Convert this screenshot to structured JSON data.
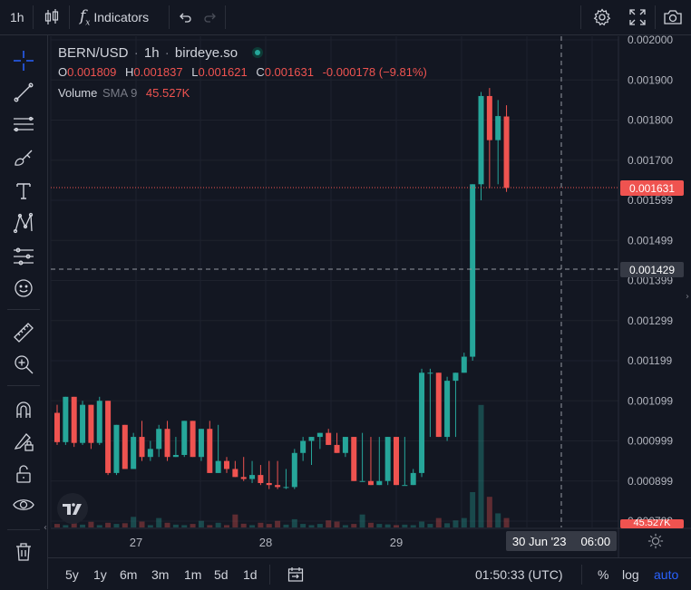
{
  "toolbar": {
    "interval": "1h",
    "indicators_label": "Indicators"
  },
  "legend": {
    "symbol": "BERN/USD",
    "interval": "1h",
    "source": "birdeye.so",
    "o_label": "O",
    "o_value": "0.001809",
    "h_label": "H",
    "h_value": "0.001837",
    "l_label": "L",
    "l_value": "0.001621",
    "c_label": "C",
    "c_value": "0.001631",
    "change": "-0.000178 (−9.81%)",
    "volume_label": "Volume",
    "sma_label": "SMA 9",
    "volume_value": "45.527K"
  },
  "price_labels": {
    "last": "0.001631",
    "crosshair": "0.001429",
    "volume": "45.527K"
  },
  "time_labels": {
    "crosshair": "30 Jun '23",
    "crosshair_time": "06:00"
  },
  "bottom": {
    "ranges": [
      "5y",
      "1y",
      "6m",
      "3m",
      "1m",
      "5d",
      "1d"
    ],
    "clock": "01:50:33 (UTC)",
    "percent": "%",
    "log": "log",
    "auto": "auto"
  },
  "colors": {
    "up": "#26a69a",
    "down": "#ef5350",
    "background": "#131722",
    "accent": "#2962ff"
  },
  "chart_data": {
    "type": "candlestick",
    "y_ticks": [
      "0.002000",
      "0.001900",
      "0.001800",
      "0.001700",
      "0.001599",
      "0.001499",
      "0.001399",
      "0.001299",
      "0.001199",
      "0.001099",
      "0.000999",
      "0.000899",
      "0.000799"
    ],
    "x_ticks": [
      "27",
      "28",
      "29"
    ],
    "ylim": [
      0.00078,
      0.002
    ],
    "candles": [
      [
        0.00107,
        0.00109,
        0.00099,
        0.000997
      ],
      [
        0.000997,
        0.00111,
        0.00099,
        0.00111
      ],
      [
        0.00111,
        0.00111,
        0.000985,
        0.000995
      ],
      [
        0.000995,
        0.0011,
        0.00099,
        0.00109
      ],
      [
        0.00109,
        0.00109,
        0.00098,
        0.000995
      ],
      [
        0.000995,
        0.00111,
        0.00099,
        0.0011
      ],
      [
        0.0011,
        0.0011,
        0.000915,
        0.00092
      ],
      [
        0.00092,
        0.00104,
        0.000915,
        0.00104
      ],
      [
        0.00104,
        0.00104,
        0.00093,
        0.00093
      ],
      [
        0.00093,
        0.00102,
        0.00093,
        0.00101
      ],
      [
        0.00101,
        0.00105,
        0.00095,
        0.00096
      ],
      [
        0.00096,
        0.001,
        0.00095,
        0.00098
      ],
      [
        0.00098,
        0.00104,
        0.00096,
        0.00103
      ],
      [
        0.00103,
        0.00105,
        0.00095,
        0.00096
      ],
      [
        0.00096,
        0.00101,
        0.00096,
        0.000965
      ],
      [
        0.000965,
        0.00105,
        0.00096,
        0.00105
      ],
      [
        0.00105,
        0.00105,
        0.00096,
        0.00096
      ],
      [
        0.00096,
        0.00103,
        0.00095,
        0.00103
      ],
      [
        0.00103,
        0.00105,
        0.00092,
        0.00092
      ],
      [
        0.00092,
        0.00104,
        0.00092,
        0.00095
      ],
      [
        0.00095,
        0.00096,
        0.00092,
        0.00093
      ],
      [
        0.00093,
        0.00095,
        0.00091,
        0.00091
      ],
      [
        0.00091,
        0.00096,
        0.0009,
        0.000905
      ],
      [
        0.000905,
        0.00095,
        0.000895,
        0.000915
      ],
      [
        0.000915,
        0.00094,
        0.00089,
        0.000895
      ],
      [
        0.000895,
        0.00095,
        0.00088,
        0.00089
      ],
      [
        0.00089,
        0.00095,
        0.00088,
        0.000885
      ],
      [
        0.000885,
        0.00093,
        0.00088,
        0.000885
      ],
      [
        0.000885,
        0.00098,
        0.00088,
        0.00097
      ],
      [
        0.00097,
        0.00101,
        0.00095,
        0.001
      ],
      [
        0.001,
        0.00101,
        0.00094,
        0.00101
      ],
      [
        0.00101,
        0.00102,
        0.00098,
        0.00102
      ],
      [
        0.00102,
        0.00103,
        0.00099,
        0.00099
      ],
      [
        0.00099,
        0.00102,
        0.00097,
        0.00097
      ],
      [
        0.00097,
        0.00101,
        0.00096,
        0.00101
      ],
      [
        0.00101,
        0.00101,
        0.0009,
        0.0009
      ],
      [
        0.0009,
        0.00102,
        0.0009,
        0.0009
      ],
      [
        0.0009,
        0.00101,
        0.00089,
        0.00089
      ],
      [
        0.00089,
        0.00101,
        0.00089,
        0.0009
      ],
      [
        0.0009,
        0.00101,
        0.00089,
        0.00101
      ],
      [
        0.00101,
        0.00101,
        0.00089,
        0.00089
      ],
      [
        0.00089,
        0.00101,
        0.00089,
        0.00089
      ],
      [
        0.00089,
        0.00093,
        0.00089,
        0.00092
      ],
      [
        0.00092,
        0.00118,
        0.00091,
        0.00117
      ],
      [
        0.00117,
        0.00118,
        0.00101,
        0.00117
      ],
      [
        0.00117,
        0.00117,
        0.00101,
        0.00101
      ],
      [
        0.00101,
        0.00116,
        0.001,
        0.00115
      ],
      [
        0.00115,
        0.00117,
        0.00101,
        0.00117
      ],
      [
        0.00117,
        0.00122,
        0.00117,
        0.00121
      ],
      [
        0.00121,
        0.00164,
        0.0012,
        0.00164
      ],
      [
        0.00164,
        0.00187,
        0.0016,
        0.00186
      ],
      [
        0.00186,
        0.00188,
        0.00163,
        0.00175
      ],
      [
        0.00175,
        0.00185,
        0.00164,
        0.00181
      ],
      [
        0.001809,
        0.001837,
        0.001621,
        0.001631
      ]
    ],
    "volume": [
      1.5,
      1.0,
      1.8,
      1.2,
      2.4,
      1.0,
      2.0,
      1.5,
      1.8,
      4.5,
      2.5,
      1.0,
      4.0,
      2.0,
      1.2,
      1.0,
      1.5,
      2.8,
      1.0,
      2.0,
      1.0,
      5.5,
      1.6,
      1.0,
      2.0,
      1.5,
      2.8,
      1.2,
      3.5,
      1.5,
      1.0,
      1.5,
      3.0,
      2.5,
      1.0,
      1.5,
      5.5,
      2.0,
      1.5,
      1.3,
      1.0,
      1.2,
      1.0,
      2.5,
      1.5,
      4.0,
      1.8,
      3.0,
      4.0,
      15.0,
      52.0,
      13.0,
      6.0,
      4.0
    ]
  }
}
